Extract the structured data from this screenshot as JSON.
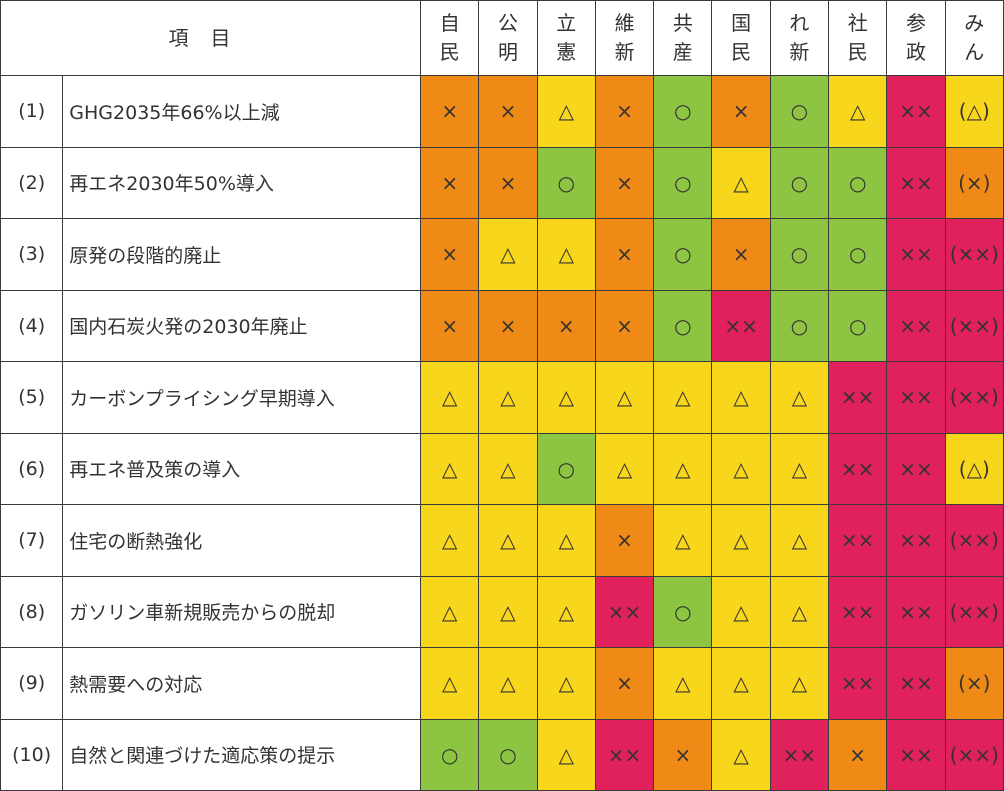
{
  "colors": {
    "orange": "#f08a17",
    "yellow": "#f8d61b",
    "green": "#8dc542",
    "red": "#e0215c"
  },
  "table": {
    "header_label": "項目",
    "parties": [
      [
        "自",
        "民"
      ],
      [
        "公",
        "明"
      ],
      [
        "立",
        "憲"
      ],
      [
        "維",
        "新"
      ],
      [
        "共",
        "産"
      ],
      [
        "国",
        "民"
      ],
      [
        "れ",
        "新"
      ],
      [
        "社",
        "民"
      ],
      [
        "参",
        "政"
      ],
      [
        "み",
        "ん"
      ]
    ],
    "rows": [
      {
        "num": "(1)",
        "label": "GHG2035年66%以上減",
        "marks": [
          "×",
          "×",
          "△",
          "×",
          "○",
          "×",
          "○",
          "△",
          "××",
          "(△)"
        ],
        "colors": [
          "o",
          "o",
          "y",
          "o",
          "g",
          "o",
          "g",
          "y",
          "r",
          "y"
        ]
      },
      {
        "num": "(2)",
        "label": "再エネ2030年50%導入",
        "marks": [
          "×",
          "×",
          "○",
          "×",
          "○",
          "△",
          "○",
          "○",
          "××",
          "(×)"
        ],
        "colors": [
          "o",
          "o",
          "g",
          "o",
          "g",
          "y",
          "g",
          "g",
          "r",
          "o"
        ]
      },
      {
        "num": "(3)",
        "label": "原発の段階的廃止",
        "marks": [
          "×",
          "△",
          "△",
          "×",
          "○",
          "×",
          "○",
          "○",
          "××",
          "(××)"
        ],
        "colors": [
          "o",
          "y",
          "y",
          "o",
          "g",
          "o",
          "g",
          "g",
          "r",
          "r"
        ]
      },
      {
        "num": "(4)",
        "label": "国内石炭火発の2030年廃止",
        "marks": [
          "×",
          "×",
          "×",
          "×",
          "○",
          "××",
          "○",
          "○",
          "××",
          "(××)"
        ],
        "colors": [
          "o",
          "o",
          "o",
          "o",
          "g",
          "r",
          "g",
          "g",
          "r",
          "r"
        ]
      },
      {
        "num": "(5)",
        "label": "カーボンプライシング早期導入",
        "marks": [
          "△",
          "△",
          "△",
          "△",
          "△",
          "△",
          "△",
          "××",
          "××",
          "(××)"
        ],
        "colors": [
          "y",
          "y",
          "y",
          "y",
          "y",
          "y",
          "y",
          "r",
          "r",
          "r"
        ]
      },
      {
        "num": "(6)",
        "label": "再エネ普及策の導入",
        "marks": [
          "△",
          "△",
          "○",
          "△",
          "△",
          "△",
          "△",
          "××",
          "××",
          "(△)"
        ],
        "colors": [
          "y",
          "y",
          "g",
          "y",
          "y",
          "y",
          "y",
          "r",
          "r",
          "y"
        ]
      },
      {
        "num": "(7)",
        "label": "住宅の断熱強化",
        "marks": [
          "△",
          "△",
          "△",
          "×",
          "△",
          "△",
          "△",
          "××",
          "××",
          "(××)"
        ],
        "colors": [
          "y",
          "y",
          "y",
          "o",
          "y",
          "y",
          "y",
          "r",
          "r",
          "r"
        ]
      },
      {
        "num": "(8)",
        "label": "ガソリン車新規販売からの脱却",
        "marks": [
          "△",
          "△",
          "△",
          "××",
          "○",
          "△",
          "△",
          "××",
          "××",
          "(××)"
        ],
        "colors": [
          "y",
          "y",
          "y",
          "r",
          "g",
          "y",
          "y",
          "r",
          "r",
          "r"
        ]
      },
      {
        "num": "(9)",
        "label": "熱需要への対応",
        "marks": [
          "△",
          "△",
          "△",
          "×",
          "△",
          "△",
          "△",
          "××",
          "××",
          "(×)"
        ],
        "colors": [
          "y",
          "y",
          "y",
          "o",
          "y",
          "y",
          "y",
          "r",
          "r",
          "o"
        ]
      },
      {
        "num": "(10)",
        "label": "自然と関連づけた適応策の提示",
        "marks": [
          "○",
          "○",
          "△",
          "××",
          "×",
          "△",
          "××",
          "×",
          "××",
          "(××)"
        ],
        "colors": [
          "g",
          "g",
          "y",
          "r",
          "o",
          "y",
          "r",
          "o",
          "r",
          "r"
        ]
      }
    ]
  }
}
